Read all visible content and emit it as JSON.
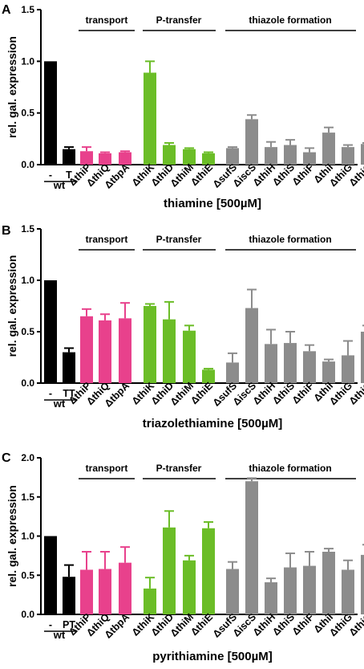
{
  "colors": {
    "wt": "#000000",
    "transport": "#e8418c",
    "ptransfer": "#6bbd27",
    "thiazole": "#8c8c8c"
  },
  "chart_data": [
    {
      "type": "bar",
      "panel": "A",
      "ylabel": "rel. gal. expression",
      "xlabel": "thiamine [500µM]",
      "ylim": [
        0,
        1.5
      ],
      "yticks": [
        "0.0",
        "0.5",
        "1.0",
        "1.5"
      ],
      "wt_label": "wt",
      "groups": [
        "transport",
        "P-transfer",
        "thiazole formation"
      ],
      "categories": [
        "-",
        "T",
        "ΔthiP",
        "ΔthiQ",
        "ΔtbpA",
        "ΔthiK",
        "ΔthiD",
        "ΔthiM",
        "ΔthiE",
        "ΔsufS",
        "ΔiscS",
        "ΔthiH",
        "ΔthiS",
        "ΔthiF",
        "ΔthiI",
        "ΔthiG",
        "ΔthiC"
      ],
      "values": [
        1.0,
        0.15,
        0.13,
        0.11,
        0.12,
        0.89,
        0.19,
        0.15,
        0.11,
        0.16,
        0.44,
        0.17,
        0.19,
        0.12,
        0.31,
        0.17,
        0.2
      ],
      "errors": [
        0,
        0.02,
        0.04,
        0.01,
        0.01,
        0.11,
        0.02,
        0.01,
        0.01,
        0.01,
        0.04,
        0.05,
        0.05,
        0.04,
        0.05,
        0.02,
        0.01
      ],
      "bar_groups": [
        "wt",
        "wt",
        "transport",
        "transport",
        "transport",
        "ptransfer",
        "ptransfer",
        "ptransfer",
        "ptransfer",
        "thiazole",
        "thiazole",
        "thiazole",
        "thiazole",
        "thiazole",
        "thiazole",
        "thiazole",
        "thiazole"
      ]
    },
    {
      "type": "bar",
      "panel": "B",
      "ylabel": "rel. gal. expression",
      "xlabel": "triazolethiamine [500µM]",
      "ylim": [
        0,
        1.5
      ],
      "yticks": [
        "0.0",
        "0.5",
        "1.0",
        "1.5"
      ],
      "wt_label": "wt",
      "groups": [
        "transport",
        "P-transfer",
        "thiazole formation"
      ],
      "categories": [
        "-",
        "TT",
        "ΔthiP",
        "ΔthiQ",
        "ΔtbpA",
        "ΔthiK",
        "ΔthiD",
        "ΔthiM",
        "ΔthiE",
        "ΔsufS",
        "ΔiscS",
        "ΔthiH",
        "ΔthiS",
        "ΔthiF",
        "ΔthiI",
        "ΔthiG",
        "ΔthiC"
      ],
      "values": [
        1.0,
        0.3,
        0.65,
        0.61,
        0.63,
        0.75,
        0.62,
        0.51,
        0.13,
        0.2,
        0.73,
        0.38,
        0.39,
        0.31,
        0.21,
        0.27,
        0.5
      ],
      "errors": [
        0,
        0.04,
        0.07,
        0.06,
        0.15,
        0.02,
        0.17,
        0.05,
        0.01,
        0.09,
        0.18,
        0.14,
        0.11,
        0.06,
        0.02,
        0.14,
        0.06
      ],
      "bar_groups": [
        "wt",
        "wt",
        "transport",
        "transport",
        "transport",
        "ptransfer",
        "ptransfer",
        "ptransfer",
        "ptransfer",
        "thiazole",
        "thiazole",
        "thiazole",
        "thiazole",
        "thiazole",
        "thiazole",
        "thiazole",
        "thiazole"
      ]
    },
    {
      "type": "bar",
      "panel": "C",
      "ylabel": "rel. gal. expression",
      "xlabel": "pyrithiamine [500µM]",
      "ylim": [
        0,
        2.0
      ],
      "yticks": [
        "0.0",
        "0.5",
        "1.0",
        "1.5",
        "2.0"
      ],
      "wt_label": "wt",
      "groups": [
        "transport",
        "P-transfer",
        "thiazole formation"
      ],
      "categories": [
        "-",
        "PT",
        "ΔthiP",
        "ΔthiQ",
        "ΔtbpA",
        "ΔthiK",
        "ΔthiD",
        "ΔthiM",
        "ΔthiE",
        "ΔsufS",
        "ΔiscS",
        "ΔthiH",
        "ΔthiS",
        "ΔthiF",
        "ΔthiI",
        "ΔthiG",
        "ΔthiC"
      ],
      "values": [
        1.0,
        0.48,
        0.57,
        0.58,
        0.66,
        0.33,
        1.11,
        0.69,
        1.1,
        0.58,
        1.7,
        0.41,
        0.6,
        0.62,
        0.8,
        0.57,
        0.76
      ],
      "errors": [
        0,
        0.15,
        0.23,
        0.22,
        0.2,
        0.14,
        0.21,
        0.06,
        0.08,
        0.09,
        0.04,
        0.05,
        0.18,
        0.18,
        0.04,
        0.12,
        0.13
      ],
      "bar_groups": [
        "wt",
        "wt",
        "transport",
        "transport",
        "transport",
        "ptransfer",
        "ptransfer",
        "ptransfer",
        "ptransfer",
        "thiazole",
        "thiazole",
        "thiazole",
        "thiazole",
        "thiazole",
        "thiazole",
        "thiazole",
        "thiazole"
      ]
    }
  ]
}
